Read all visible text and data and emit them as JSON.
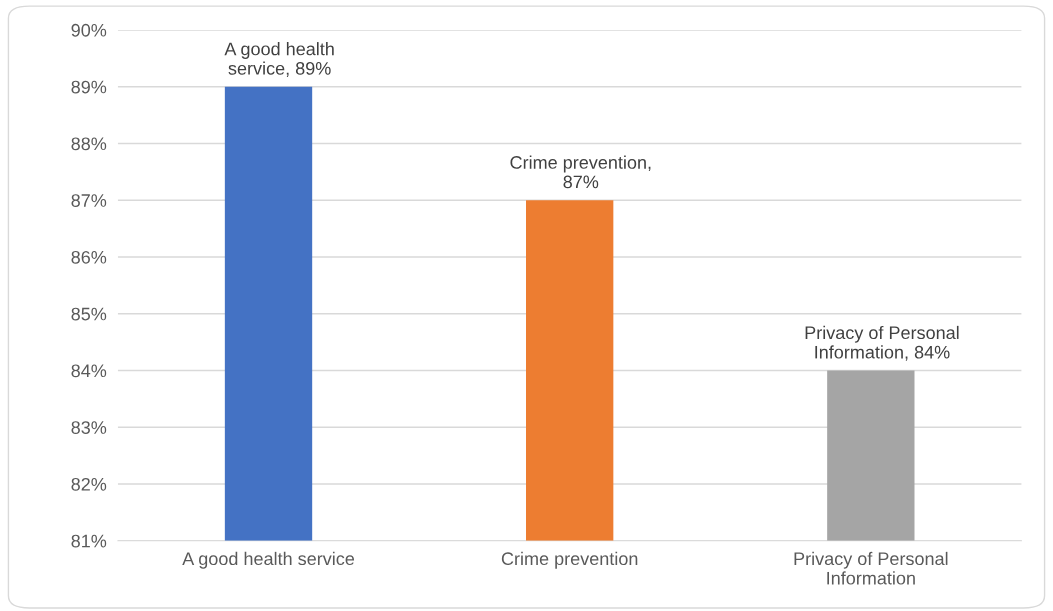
{
  "chart_data": {
    "type": "bar",
    "categories": [
      "A good health service",
      "Crime prevention",
      "Privacy of Personal Information"
    ],
    "values": [
      89,
      87,
      84
    ],
    "colors": [
      "#4472c4",
      "#ed7d31",
      "#a5a5a5"
    ],
    "value_labels": [
      "A good health service, 89%",
      "Crime prevention, 87%",
      "Privacy of Personal Information, 84%"
    ],
    "ylim": [
      81,
      90
    ],
    "yticks": [
      {
        "value": 81,
        "label": "81%"
      },
      {
        "value": 82,
        "label": "82%"
      },
      {
        "value": 83,
        "label": "83%"
      },
      {
        "value": 84,
        "label": "84%"
      },
      {
        "value": 85,
        "label": "85%"
      },
      {
        "value": 86,
        "label": "86%"
      },
      {
        "value": 87,
        "label": "87%"
      },
      {
        "value": 88,
        "label": "88%"
      },
      {
        "value": 89,
        "label": "89%"
      },
      {
        "value": 90,
        "label": "90%"
      }
    ],
    "grid": "y"
  }
}
